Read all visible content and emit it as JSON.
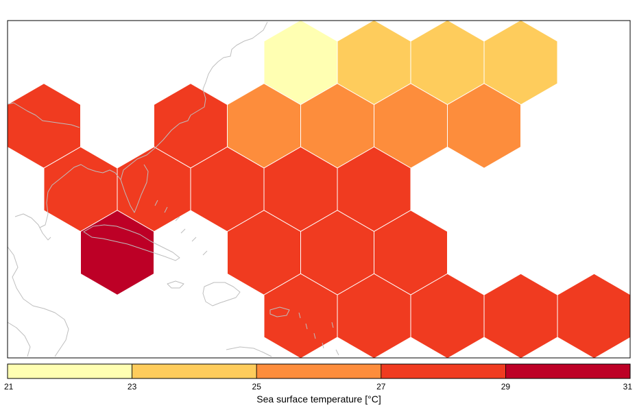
{
  "legend": {
    "title": "Sea surface temperature [°C]",
    "ticks": [
      "21",
      "23",
      "25",
      "27",
      "29",
      "31"
    ],
    "bins": [
      {
        "min": 21,
        "max": 23,
        "color": "#FFFFB2"
      },
      {
        "min": 23,
        "max": 25,
        "color": "#FECC5C"
      },
      {
        "min": 25,
        "max": 27,
        "color": "#FD8D3C"
      },
      {
        "min": 27,
        "max": 29,
        "color": "#F03B20"
      },
      {
        "min": 29,
        "max": 31,
        "color": "#BD0026"
      }
    ]
  },
  "map": {
    "coastline_color": "#BEBEBE",
    "hex_border_color": "#FFFFFF",
    "frame_color": "#000000"
  },
  "chart_data": {
    "type": "heatmap",
    "title": "",
    "value_label": "Sea surface temperature [°C]",
    "value_range": [
      21,
      31
    ],
    "grid": "hexagonal (columns × rows, offset rows)",
    "cells": [
      {
        "col": 3.5,
        "row": 0,
        "bin": "21-23"
      },
      {
        "col": 4.5,
        "row": 0,
        "bin": "23-25"
      },
      {
        "col": 5.5,
        "row": 0,
        "bin": "23-25"
      },
      {
        "col": 6.5,
        "row": 0,
        "bin": "23-25"
      },
      {
        "col": 0,
        "row": 1,
        "bin": "27-29"
      },
      {
        "col": 2,
        "row": 1,
        "bin": "27-29"
      },
      {
        "col": 3,
        "row": 1,
        "bin": "25-27"
      },
      {
        "col": 4,
        "row": 1,
        "bin": "25-27"
      },
      {
        "col": 5,
        "row": 1,
        "bin": "25-27"
      },
      {
        "col": 6,
        "row": 1,
        "bin": "25-27"
      },
      {
        "col": 0.5,
        "row": 2,
        "bin": "27-29"
      },
      {
        "col": 1.5,
        "row": 2,
        "bin": "27-29"
      },
      {
        "col": 2.5,
        "row": 2,
        "bin": "27-29"
      },
      {
        "col": 3.5,
        "row": 2,
        "bin": "27-29"
      },
      {
        "col": 4.5,
        "row": 2,
        "bin": "27-29"
      },
      {
        "col": 1,
        "row": 3,
        "bin": "29-31"
      },
      {
        "col": 3,
        "row": 3,
        "bin": "27-29"
      },
      {
        "col": 4,
        "row": 3,
        "bin": "27-29"
      },
      {
        "col": 5,
        "row": 3,
        "bin": "27-29"
      },
      {
        "col": 3.5,
        "row": 4,
        "bin": "27-29"
      },
      {
        "col": 4.5,
        "row": 4,
        "bin": "27-29"
      },
      {
        "col": 5.5,
        "row": 4,
        "bin": "27-29"
      },
      {
        "col": 6.5,
        "row": 4,
        "bin": "27-29"
      },
      {
        "col": 7.5,
        "row": 4,
        "bin": "27-29"
      }
    ]
  }
}
